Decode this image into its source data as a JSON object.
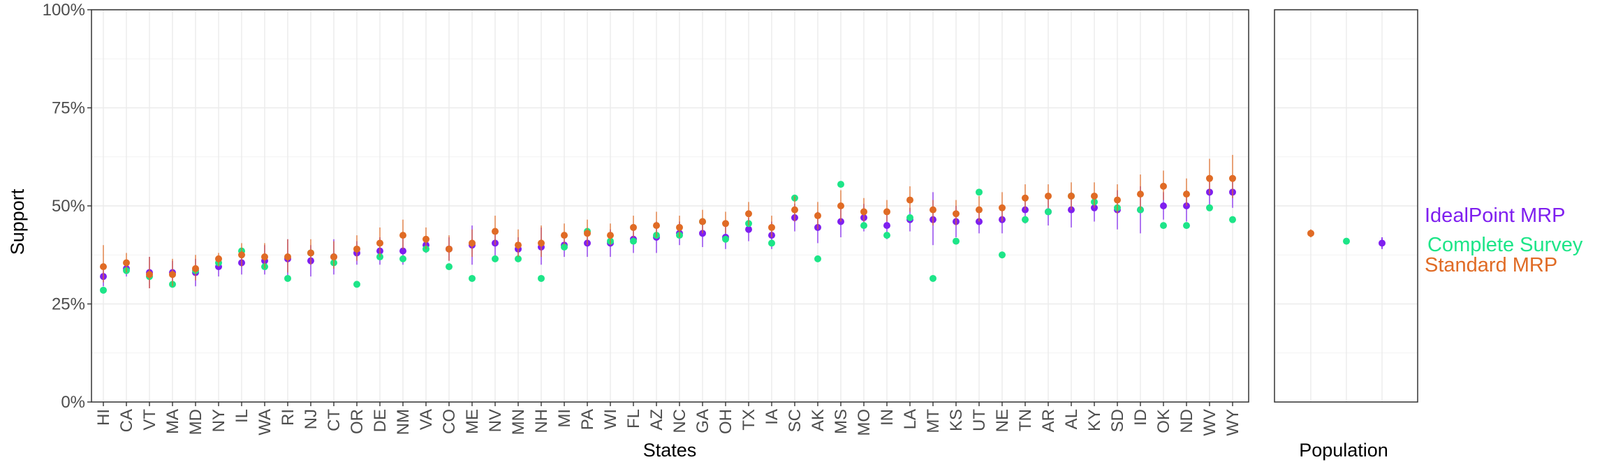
{
  "chart_data": {
    "type": "scatter",
    "ylabel": "Support",
    "xlabel": "States",
    "population_xlabel": "Population",
    "ylim": [
      0,
      100
    ],
    "yticks": [
      "0%",
      "25%",
      "50%",
      "75%",
      "100%"
    ],
    "ytick_values": [
      0,
      25,
      50,
      75,
      100
    ],
    "grid": true,
    "legend_position": "right",
    "categories": [
      "HI",
      "CA",
      "VT",
      "MA",
      "MD",
      "NY",
      "IL",
      "WA",
      "RI",
      "NJ",
      "CT",
      "OR",
      "DE",
      "NM",
      "VA",
      "CO",
      "ME",
      "NV",
      "MN",
      "NH",
      "MI",
      "PA",
      "WI",
      "FL",
      "AZ",
      "NC",
      "GA",
      "OH",
      "TX",
      "IA",
      "SC",
      "AK",
      "MS",
      "MO",
      "IN",
      "LA",
      "MT",
      "KS",
      "UT",
      "NE",
      "TN",
      "AR",
      "AL",
      "KY",
      "SD",
      "ID",
      "OK",
      "ND",
      "WV",
      "WY"
    ],
    "series": [
      {
        "name": "IdealPoint MRP",
        "color": "#7f1fef",
        "values": [
          32,
          34,
          33,
          33,
          33,
          34.5,
          35.5,
          36,
          36.5,
          36,
          37,
          38,
          38.5,
          38.5,
          40,
          39,
          40,
          40.5,
          39,
          39.5,
          40,
          40.5,
          40.5,
          41.5,
          42,
          43,
          43,
          42,
          44,
          42.5,
          47,
          44.5,
          46,
          47,
          45,
          46.5,
          46.5,
          46,
          46,
          46.5,
          49,
          48.5,
          49,
          49.5,
          49,
          49,
          50,
          50,
          53.5,
          53.5
        ],
        "lower": [
          29.5,
          32,
          29,
          30,
          29.5,
          32,
          32.5,
          32.5,
          31.5,
          32,
          32.5,
          35,
          35,
          35,
          38,
          36,
          35,
          37,
          36,
          35,
          37,
          37,
          37,
          38,
          38,
          40,
          39.5,
          39,
          41,
          39,
          43.5,
          40.5,
          42,
          43.5,
          41.5,
          43.5,
          40,
          42,
          43,
          43,
          45.5,
          45,
          44.5,
          46,
          44,
          43,
          46.5,
          46,
          49.5,
          49.5
        ],
        "upper": [
          34.5,
          36,
          37,
          36,
          36.5,
          37,
          38.5,
          40,
          41.5,
          40,
          41.5,
          41,
          42,
          42,
          42,
          42,
          45,
          44,
          42,
          44.5,
          43,
          44,
          44,
          45,
          46,
          46,
          46.5,
          45,
          47,
          46,
          50.5,
          48.5,
          50,
          50.5,
          48.5,
          49.5,
          53.5,
          50,
          49.5,
          50,
          52.5,
          52,
          53.5,
          53,
          54,
          55,
          53.5,
          54,
          57.5,
          57.5
        ]
      },
      {
        "name": "Complete Survey",
        "color": "#1de588",
        "values": [
          28.5,
          33.5,
          32,
          30,
          33.5,
          35.5,
          38.5,
          34.5,
          31.5,
          38,
          35.5,
          30,
          37,
          36.5,
          39,
          34.5,
          31.5,
          36.5,
          36.5,
          31.5,
          39.5,
          43.5,
          41,
          41,
          42.5,
          42.5,
          46,
          41.5,
          45.5,
          40.5,
          52,
          36.5,
          55.5,
          45,
          42.5,
          47,
          31.5,
          41,
          53.5,
          37.5,
          46.5,
          48.5,
          52.5,
          51,
          49.5,
          49,
          45,
          45,
          49.5,
          46.5
        ]
      },
      {
        "name": "Standard MRP",
        "color": "#e06b25",
        "values": [
          34.5,
          35.5,
          32.5,
          32.5,
          34,
          36.5,
          37.5,
          37,
          37,
          38,
          37,
          39,
          40.5,
          42.5,
          41.5,
          39,
          40.5,
          43.5,
          40,
          40.5,
          42.5,
          43,
          42.5,
          44.5,
          45,
          44.5,
          46,
          45.5,
          48,
          44.5,
          49,
          47.5,
          50,
          48.5,
          48.5,
          51.5,
          49,
          48,
          49,
          49.5,
          52,
          52.5,
          52.5,
          52.5,
          51.5,
          53,
          55,
          53,
          57,
          57
        ],
        "lower": [
          30.5,
          33,
          29,
          29.5,
          31,
          34.5,
          34.5,
          34,
          33,
          35,
          34,
          36,
          37,
          39,
          39,
          36,
          37,
          40,
          37,
          37,
          40,
          40,
          40,
          42,
          42,
          42,
          43,
          43,
          45,
          42,
          46,
          44,
          46,
          46,
          46,
          48.5,
          45,
          45,
          46,
          46,
          49,
          49.5,
          49,
          49.5,
          48,
          49,
          51.5,
          50,
          53,
          52
        ],
        "upper": [
          40,
          38,
          37,
          36.5,
          37.5,
          38,
          40.5,
          40.5,
          41.5,
          41.5,
          41,
          42.5,
          44.5,
          46.5,
          44.5,
          42.5,
          44,
          47.5,
          44,
          45,
          45.5,
          46.5,
          45.5,
          47.5,
          48.5,
          47.5,
          49,
          48.5,
          51,
          47.5,
          52.5,
          51,
          54,
          52,
          51.5,
          55,
          51.5,
          51.5,
          52.5,
          53.5,
          55.5,
          55.5,
          56,
          56,
          55.5,
          58,
          59,
          57,
          62,
          63
        ]
      }
    ],
    "population": {
      "label": "Population",
      "series": [
        {
          "name": "Standard MRP",
          "value": 43,
          "lower": 42,
          "upper": 44
        },
        {
          "name": "Complete Survey",
          "value": 41
        },
        {
          "name": "IdealPoint MRP",
          "value": 40.5,
          "lower": 39,
          "upper": 42
        }
      ]
    }
  }
}
